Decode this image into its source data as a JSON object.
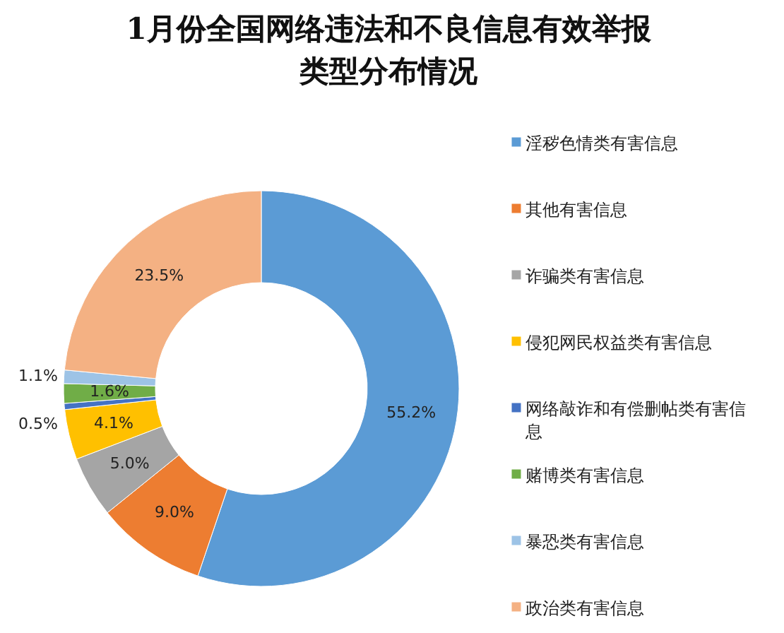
{
  "chart_data": {
    "type": "donut",
    "title": "1月份全国网络违法和不良信息有效举报类型分布情况",
    "categories": [
      "淫秽色情类有害信息",
      "其他有害信息",
      "诈骗类有害信息",
      "侵犯网民权益类有害信息",
      "网络敲诈和有偿删帖类有害信息",
      "赌博类有害信息",
      "暴恐类有害信息",
      "政治类有害信息"
    ],
    "values": [
      55.2,
      9.0,
      5.0,
      4.1,
      0.5,
      1.6,
      1.1,
      23.5
    ],
    "colors": [
      "#5b9bd5",
      "#ed7d31",
      "#a5a5a5",
      "#ffc000",
      "#4472c4",
      "#70ad47",
      "#9dc3e6",
      "#f4b183"
    ],
    "value_labels": [
      "55.2%",
      "9.0%",
      "5.0%",
      "4.1%",
      "0.5%",
      "1.6%",
      "1.1%",
      "23.5%"
    ],
    "legend": "right"
  }
}
